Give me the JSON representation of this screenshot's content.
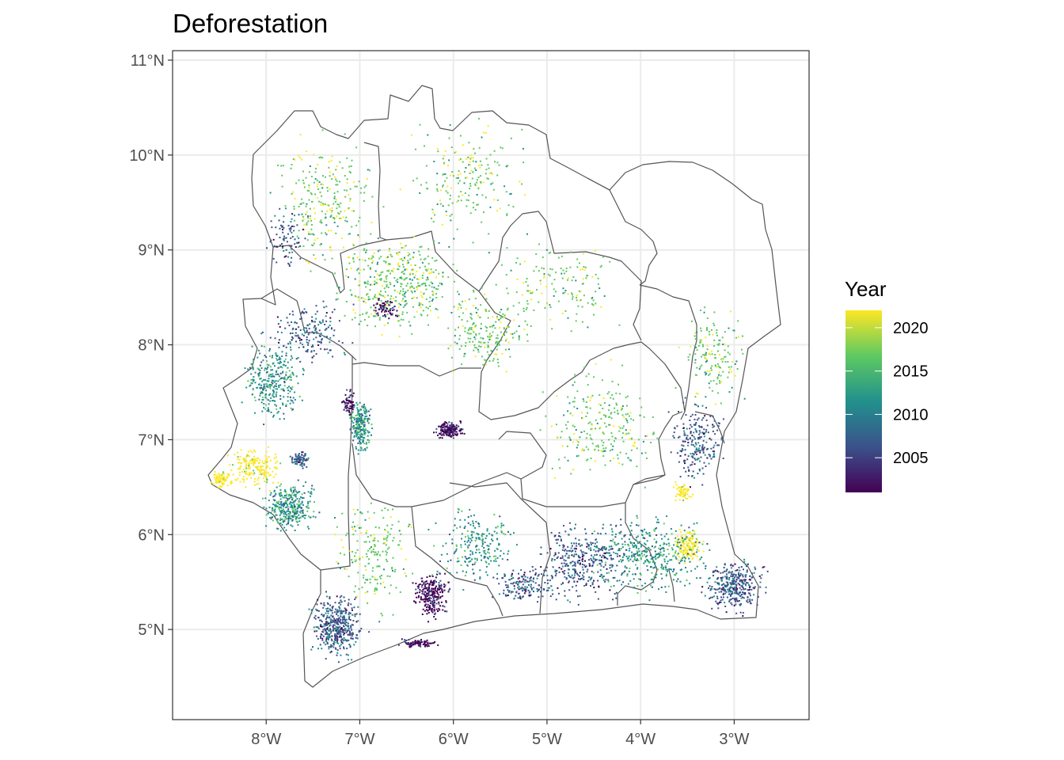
{
  "map": {
    "title": "Deforestation",
    "x_ticks": [
      "8°W",
      "7°W",
      "6°W",
      "5°W",
      "4°W",
      "3°W"
    ],
    "y_ticks": [
      "11°N",
      "10°N",
      "9°N",
      "8°N",
      "7°N",
      "6°N",
      "5°N"
    ],
    "lon_range": [
      -9.0,
      -2.2
    ],
    "lat_range": [
      4.05,
      11.1
    ],
    "grid": true,
    "background": "#ffffff",
    "grid_color": "#ebebeb",
    "border_color": "#555555",
    "legend": {
      "title": "Year",
      "placement": "right",
      "labels": [
        "2020",
        "2015",
        "2010",
        "2005"
      ],
      "range": [
        2001,
        2022
      ],
      "palette": "viridis",
      "colors": [
        "#440154",
        "#3b528b",
        "#21918c",
        "#5ec962",
        "#fde725"
      ]
    }
  }
}
